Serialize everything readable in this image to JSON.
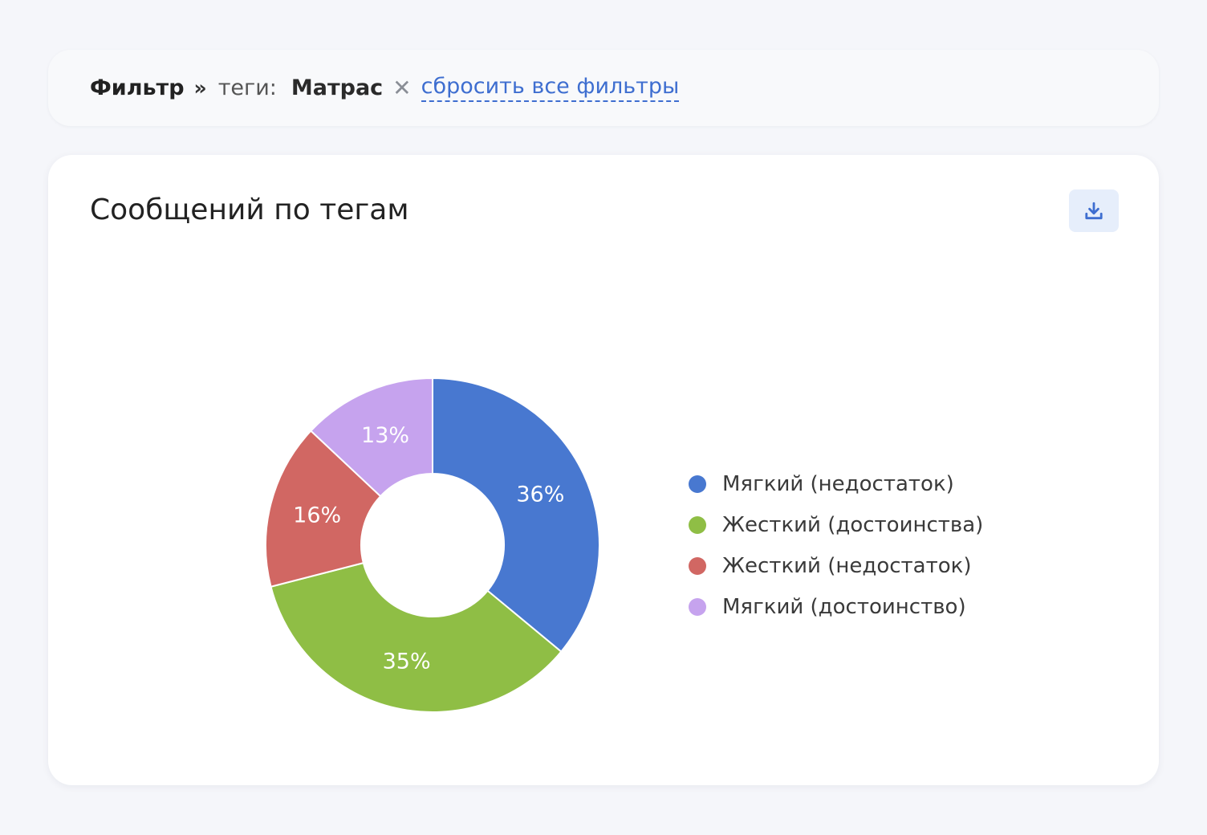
{
  "filter": {
    "label": "Фильтр",
    "separator": "»",
    "key": "теги",
    "colon": ":",
    "value": "Матрас",
    "remove_symbol": "✕",
    "reset_label": "сбросить все фильтры"
  },
  "card": {
    "title": "Сообщений по тегам",
    "download_icon": "download-icon"
  },
  "chart_data": {
    "type": "pie",
    "style": "donut",
    "title": "Сообщений по тегам",
    "legend_position": "right",
    "categories": [
      "Мягкий (недостаток)",
      "Жесткий (достоинства)",
      "Жесткий (недостаток)",
      "Мягкий (достоинство)"
    ],
    "values": [
      36,
      35,
      16,
      13
    ],
    "labels": [
      "36%",
      "35%",
      "16%",
      "13%"
    ],
    "colors": [
      "#4878d0",
      "#8fbe45",
      "#d16763",
      "#c6a3ee"
    ]
  }
}
